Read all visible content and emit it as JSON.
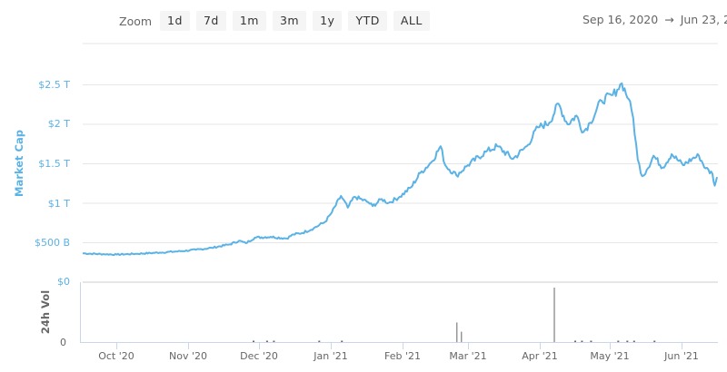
{
  "toolbar": {
    "zoom_label": "Zoom",
    "zoom_buttons": [
      "1d",
      "7d",
      "1m",
      "3m",
      "1y",
      "YTD",
      "ALL"
    ],
    "date_from": "Sep 16, 2020",
    "arrow": "→",
    "date_to": "Jun 23, 2"
  },
  "colors": {
    "line": "#5bb2e5",
    "grid": "#e6e6e6",
    "axis": "#ccd6eb",
    "volume_bar": "#666666"
  },
  "chart_data": [
    {
      "type": "line",
      "title": "",
      "ylabel": "Market Cap",
      "xlabel": "",
      "y_tick_labels": [
        "$0",
        "$500 B",
        "$1 T",
        "$1.5 T",
        "$2 T",
        "$2.5 T"
      ],
      "y_ticks": [
        0,
        500,
        1000,
        1500,
        2000,
        2500
      ],
      "ylim": [
        0,
        2500
      ],
      "units": "USD billions",
      "x_tick_labels": [
        "Oct '20",
        "Nov '20",
        "Dec '20",
        "Jan '21",
        "Feb '21",
        "Mar '21",
        "Apr '21",
        "May '21",
        "Jun '21"
      ],
      "grid": true,
      "legend": null,
      "series": [
        {
          "name": "Market Cap",
          "x": [
            "2020-09-16",
            "2020-09-25",
            "2020-10-01",
            "2020-10-10",
            "2020-10-20",
            "2020-10-28",
            "2020-11-05",
            "2020-11-12",
            "2020-11-20",
            "2020-11-24",
            "2020-11-27",
            "2020-12-01",
            "2020-12-08",
            "2020-12-15",
            "2020-12-18",
            "2020-12-22",
            "2020-12-27",
            "2021-01-01",
            "2021-01-04",
            "2021-01-08",
            "2021-01-11",
            "2021-01-14",
            "2021-01-20",
            "2021-01-22",
            "2021-01-26",
            "2021-01-29",
            "2021-02-03",
            "2021-02-08",
            "2021-02-12",
            "2021-02-17",
            "2021-02-21",
            "2021-02-23",
            "2021-02-28",
            "2021-03-05",
            "2021-03-13",
            "2021-03-18",
            "2021-03-25",
            "2021-03-31",
            "2021-04-05",
            "2021-04-10",
            "2021-04-14",
            "2021-04-18",
            "2021-04-22",
            "2021-04-25",
            "2021-04-28",
            "2021-05-03",
            "2021-05-08",
            "2021-05-10",
            "2021-05-12",
            "2021-05-15",
            "2021-05-17",
            "2021-05-19",
            "2021-05-21",
            "2021-05-23",
            "2021-05-26",
            "2021-05-30",
            "2021-06-03",
            "2021-06-08",
            "2021-06-12",
            "2021-06-15",
            "2021-06-18",
            "2021-06-21",
            "2021-06-22",
            "2021-06-23"
          ],
          "values": [
            360,
            350,
            345,
            355,
            370,
            385,
            405,
            430,
            475,
            520,
            490,
            560,
            570,
            550,
            600,
            620,
            680,
            760,
            880,
            1090,
            940,
            1080,
            1010,
            960,
            1050,
            1000,
            1080,
            1200,
            1380,
            1520,
            1720,
            1480,
            1350,
            1480,
            1650,
            1720,
            1560,
            1720,
            1960,
            2020,
            2260,
            2000,
            2110,
            1900,
            2020,
            2300,
            2370,
            2440,
            2520,
            2320,
            2080,
            1550,
            1340,
            1420,
            1600,
            1450,
            1620,
            1480,
            1560,
            1600,
            1440,
            1370,
            1220,
            1330
          ]
        }
      ]
    },
    {
      "type": "bar",
      "title": "",
      "ylabel": "24h Vol",
      "y_tick_labels": [
        "0",
        "$0"
      ],
      "x_tick_labels": [
        "Oct '20",
        "Nov '20",
        "Dec '20",
        "Jan '21",
        "Feb '21",
        "Mar '21",
        "Apr '21",
        "May '21",
        "Jun '21"
      ],
      "series": [
        {
          "name": "24h Vol (relative height)",
          "x": [
            "2020-11-30",
            "2020-12-06",
            "2020-12-09",
            "2020-12-29",
            "2021-01-08",
            "2021-02-28",
            "2021-03-02",
            "2021-04-12",
            "2021-04-21",
            "2021-04-24",
            "2021-04-28",
            "2021-05-10",
            "2021-05-14",
            "2021-05-17",
            "2021-05-26"
          ],
          "values": [
            1,
            1,
            1,
            0.5,
            1,
            36,
            19,
            100,
            1,
            1,
            1,
            1,
            1,
            1,
            1
          ]
        }
      ]
    }
  ]
}
